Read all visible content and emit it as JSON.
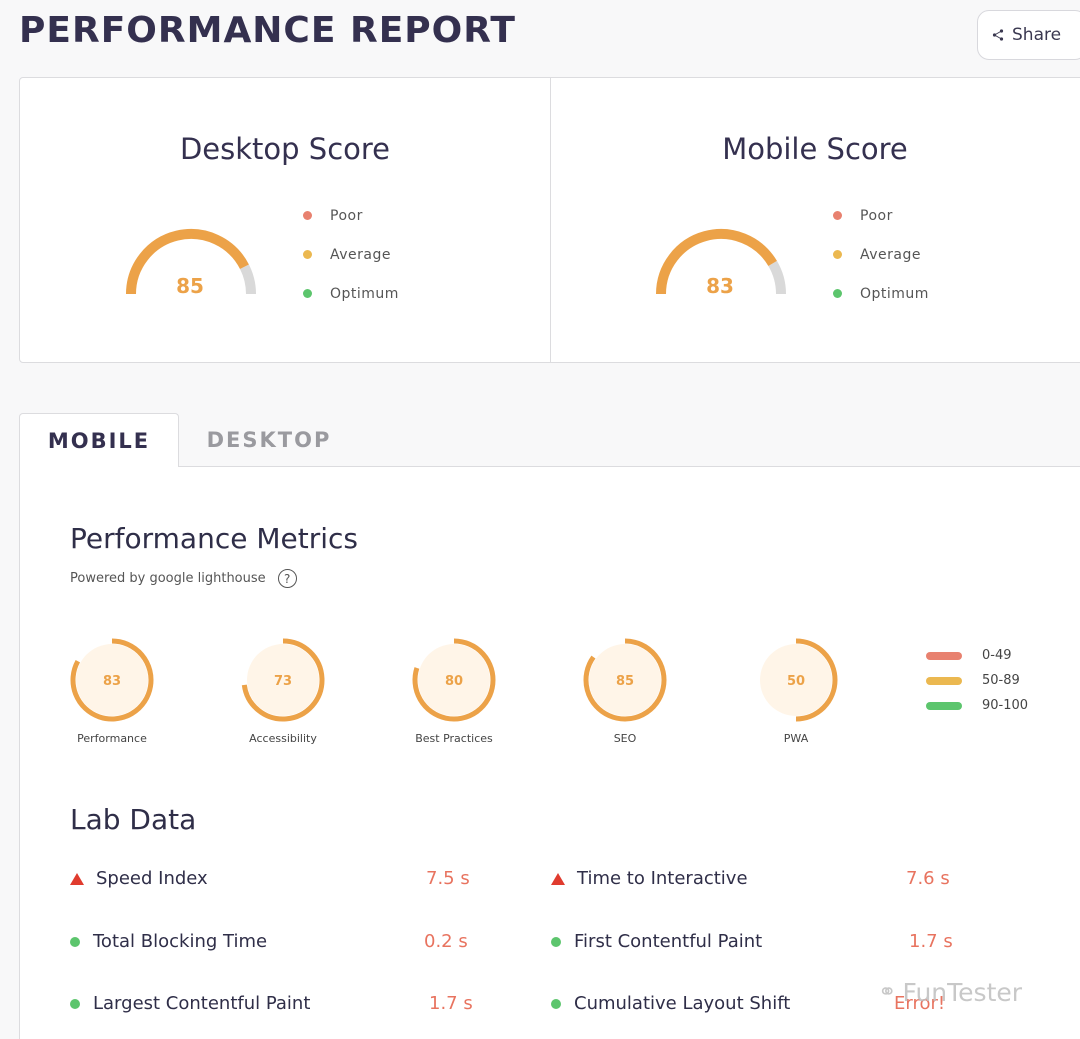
{
  "header": {
    "title": "PERFORMANCE REPORT",
    "share_label": "Share"
  },
  "scores": [
    {
      "title": "Desktop Score",
      "value": "85",
      "fraction": 0.85
    },
    {
      "title": "Mobile Score",
      "value": "83",
      "fraction": 0.83
    }
  ],
  "score_legend": [
    "Poor",
    "Average",
    "Optimum"
  ],
  "colors": {
    "poor": "#e8816f",
    "average": "#ebb850",
    "optimum": "#5cc56d",
    "gauge": "#eca248",
    "gauge_track": "#d9d9d9",
    "metric_fill": "#fff5e8"
  },
  "tabs": {
    "mobile": "MOBILE",
    "desktop": "DESKTOP"
  },
  "metrics_section": {
    "title": "Performance Metrics",
    "subtitle": "Powered by google lighthouse",
    "help": "?",
    "items": [
      {
        "label": "Performance",
        "value": "83",
        "fraction": 0.83
      },
      {
        "label": "Accessibility",
        "value": "73",
        "fraction": 0.73
      },
      {
        "label": "Best Practices",
        "value": "80",
        "fraction": 0.8
      },
      {
        "label": "SEO",
        "value": "85",
        "fraction": 0.85
      },
      {
        "label": "PWA",
        "value": "50",
        "fraction": 0.5
      }
    ],
    "ranges": [
      "0-49",
      "50-89",
      "90-100"
    ]
  },
  "lab_data": {
    "title": "Lab Data",
    "rows": [
      {
        "label": "Speed Index",
        "value": "7.5 s",
        "status": "warn"
      },
      {
        "label": "Time to Interactive",
        "value": "7.6 s",
        "status": "warn"
      },
      {
        "label": "Total Blocking Time",
        "value": "0.2 s",
        "status": "ok"
      },
      {
        "label": "First Contentful Paint",
        "value": "1.7 s",
        "status": "ok"
      },
      {
        "label": "Largest Contentful Paint",
        "value": "1.7 s",
        "status": "ok"
      },
      {
        "label": "Cumulative Layout Shift",
        "value": "Error!",
        "status": "ok"
      }
    ]
  },
  "watermark": "FunTester"
}
